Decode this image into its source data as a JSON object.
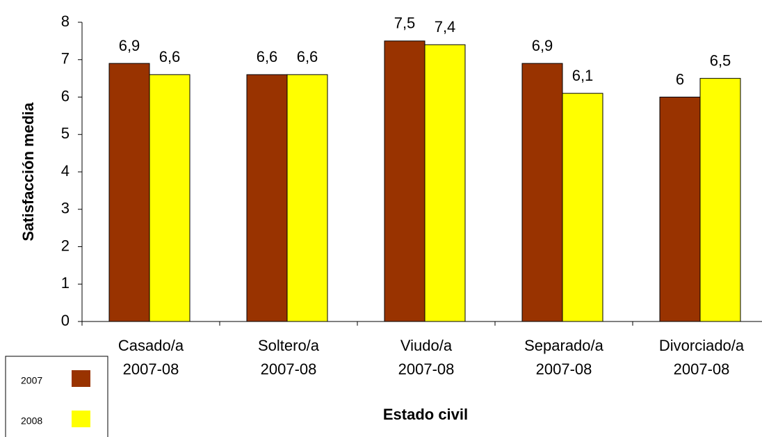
{
  "chart_data": {
    "type": "bar",
    "x_label": "Estado civil",
    "y_label": "Satisfacción media",
    "categories": [
      [
        "Casado/a",
        "2007-08"
      ],
      [
        "Soltero/a",
        "2007-08"
      ],
      [
        "Viudo/a",
        "2007-08"
      ],
      [
        "Separado/a",
        "2007-08"
      ],
      [
        "Divorciado/a",
        "2007-08"
      ]
    ],
    "series": [
      {
        "name": "2007",
        "color": "#993300",
        "values": [
          6.9,
          6.6,
          7.5,
          6.9,
          6
        ],
        "value_labels": [
          "6,9",
          "6,6",
          "7,5",
          "6,9",
          "6"
        ]
      },
      {
        "name": "2008",
        "color": "#ffff00",
        "values": [
          6.6,
          6.6,
          7.4,
          6.1,
          6.5
        ],
        "value_labels": [
          "6,6",
          "6,6",
          "7,4",
          "6,1",
          "6,5"
        ]
      }
    ],
    "ylim": [
      0,
      8
    ],
    "yticks": [
      0,
      1,
      2,
      3,
      4,
      5,
      6,
      7,
      8
    ],
    "grid": false
  }
}
